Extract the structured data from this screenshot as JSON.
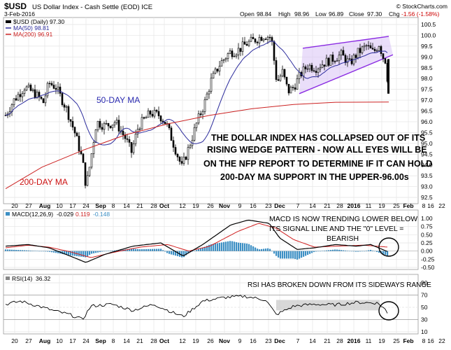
{
  "header": {
    "symbol": "$USD",
    "name": "US Dollar Index - Cash Settle (EOD) ICE",
    "date": "3-Feb-2016",
    "source": "© StockCharts.com",
    "open_label": "Open",
    "open": "98.84",
    "high_label": "High",
    "high": "98.96",
    "low_label": "Low",
    "low": "96.89",
    "close_label": "Close",
    "close": "97.30",
    "chg_label": "Chg",
    "chg": "-1.56 (-1.58%)"
  },
  "legend": {
    "price": "$USD (Daily) 97.30",
    "ma50": "MA(50) 98.81",
    "ma200": "MA(200) 96.91"
  },
  "colors": {
    "candle": "#000000",
    "ma50": "#2b2b9c",
    "ma200": "#cc2222",
    "wedge": "#8a2be2",
    "wedge_fill": "#d9c2f5",
    "macd_hist": "#3c8fc4",
    "macd_line": "#000000",
    "macd_signal": "#d02020",
    "rsi_line": "#000000",
    "annotation": "#000000",
    "ma_label_blue": "#2a2ab0",
    "ma_label_red": "#cc1111"
  },
  "annotations": {
    "ma50": "50-DAY MA",
    "ma200": "200-DAY MA",
    "main": [
      "THE DOLLAR INDEX HAS COLLAPSED OUT OF ITS",
      "RISING WEDGE PATTERN - NOW ALL EYES WILL BE",
      "ON THE NFP REPORT TO DETERMINE IF IT CAN HOLD",
      "200-DAY MA SUPPORT IN THE UPPER-96.00s"
    ],
    "macd": [
      "MACD IS NOW TRENDING LOWER BELOW",
      "ITS SIGNAL LINE AND THE \"0\" LEVEL =",
      "BEARISH"
    ],
    "rsi": "RSI HAS BROKEN DOWN FROM ITS SIDEWAYS RANGE"
  },
  "macd_panel": {
    "label": "MACD(12,26,9)",
    "v1": "-0.029",
    "v2": "0.119",
    "v3": "-0.148",
    "ticks": [
      "1.00",
      "0.75",
      "0.50",
      "0.25",
      "0.00",
      "-0.25",
      "-0.50"
    ]
  },
  "rsi_panel": {
    "label": "RSI(14)",
    "value": "36.32",
    "ticks": [
      "90",
      "70",
      "50",
      "30",
      "10"
    ]
  },
  "chart_data": {
    "type": "candlestick",
    "series": [
      {
        "name": "$USD (Daily)",
        "last": 97.3
      },
      {
        "name": "MA(50)",
        "last": 98.81
      },
      {
        "name": "MA(200)",
        "last": 96.91
      }
    ],
    "ylim": [
      92.5,
      100.5
    ],
    "y_ticks": [
      "100.5",
      "100.0",
      "99.5",
      "99.0",
      "98.5",
      "98.0",
      "97.5",
      "97.0",
      "96.5",
      "96.0",
      "95.5",
      "95.0",
      "94.5",
      "94.0",
      "93.5",
      "93.0",
      "92.5"
    ],
    "x_ticks": [
      "20",
      "27",
      "Aug",
      "10",
      "17",
      "24",
      "Sep",
      "8",
      "14",
      "21",
      "28",
      "Oct",
      "12",
      "19",
      "26",
      "Nov",
      "9",
      "16",
      "23",
      "Dec",
      "7",
      "14",
      "21",
      "28",
      "2016",
      "11",
      "19",
      "25",
      "Feb",
      "8",
      "16",
      "22"
    ],
    "grid": true
  }
}
